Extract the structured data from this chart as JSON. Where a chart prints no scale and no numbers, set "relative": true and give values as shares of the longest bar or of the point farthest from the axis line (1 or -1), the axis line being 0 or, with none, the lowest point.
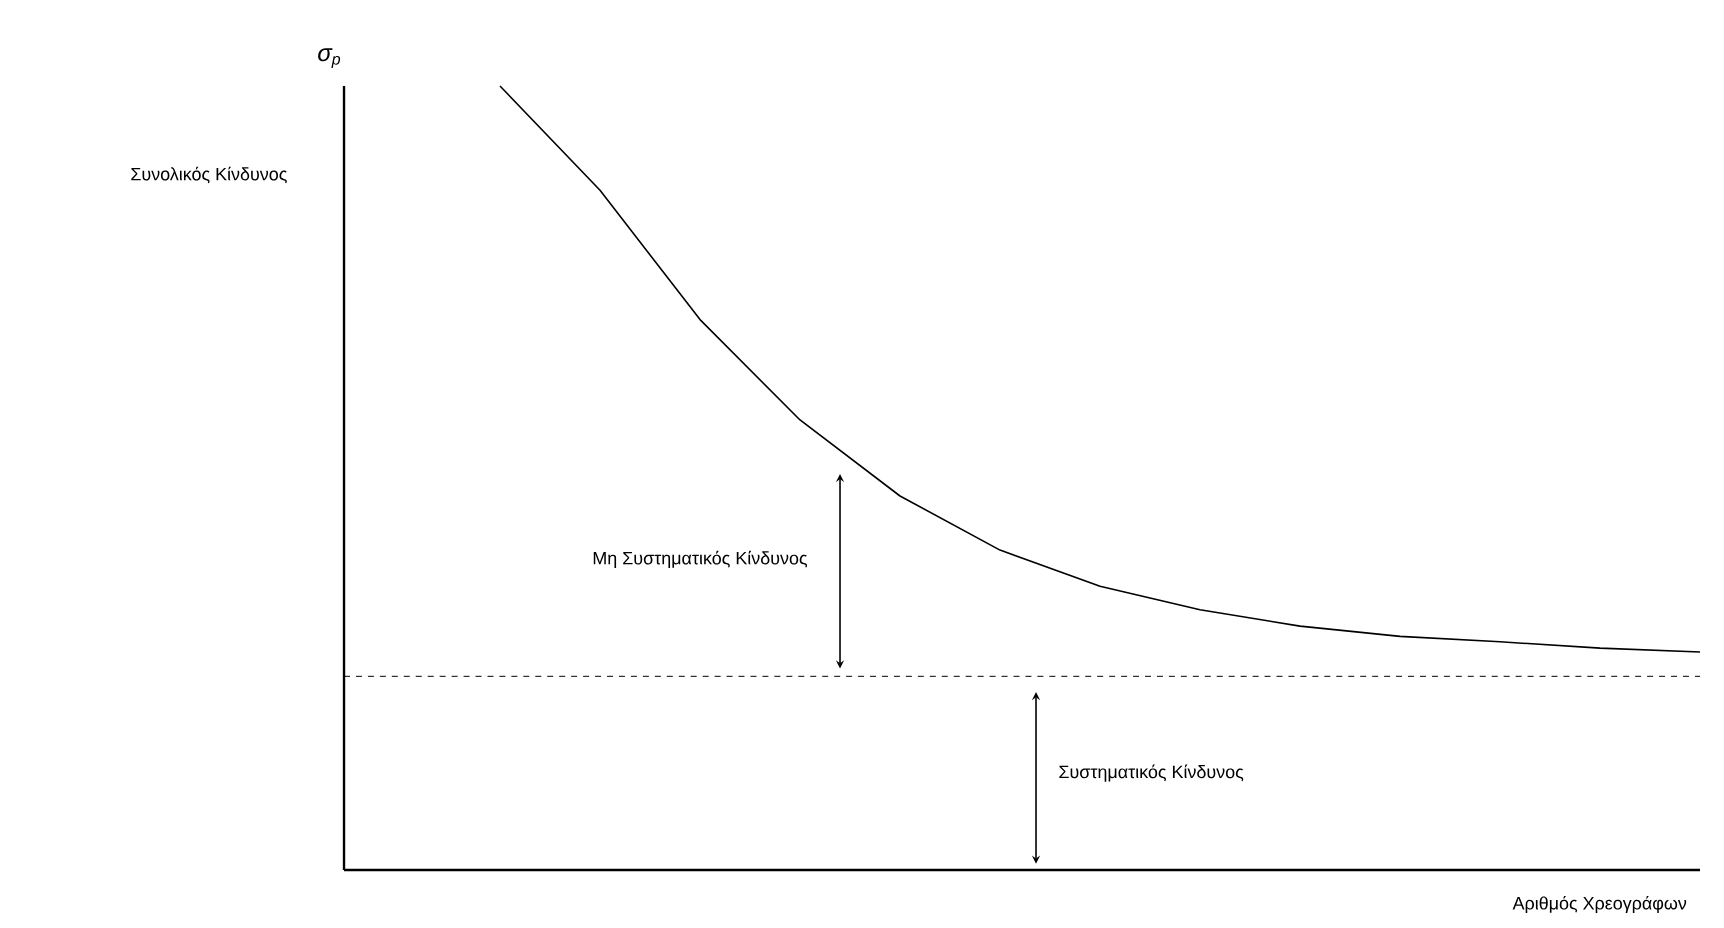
{
  "chart_data": {
    "type": "line",
    "relative": true,
    "categories": [
      null,
      null,
      null,
      null,
      null,
      null,
      null,
      null,
      null,
      null,
      null,
      null,
      null
    ],
    "series": [
      {
        "color": "#000000",
        "values": [
          1,
          0.867,
          0.702,
          0.574,
          0.477,
          0.408,
          0.362,
          0.332,
          0.311,
          0.298,
          0.291,
          0.283,
          0.278
        ]
      }
    ],
    "xlabel": "Αριθμός Χρεογράφων",
    "ylabel": "σ$_{p}$",
    "ref_lines": [
      {
        "axis": "y",
        "value": 0.247,
        "line_style": "dashed",
        "color": "#000000"
      }
    ],
    "annotations": [
      "Συνολικός Κίνδυνος",
      "Μη Συστηματικός Κίνδυνος",
      "Συστηματικός Κίνδυνος"
    ],
    "marker": "none",
    "line_style": "solid"
  }
}
